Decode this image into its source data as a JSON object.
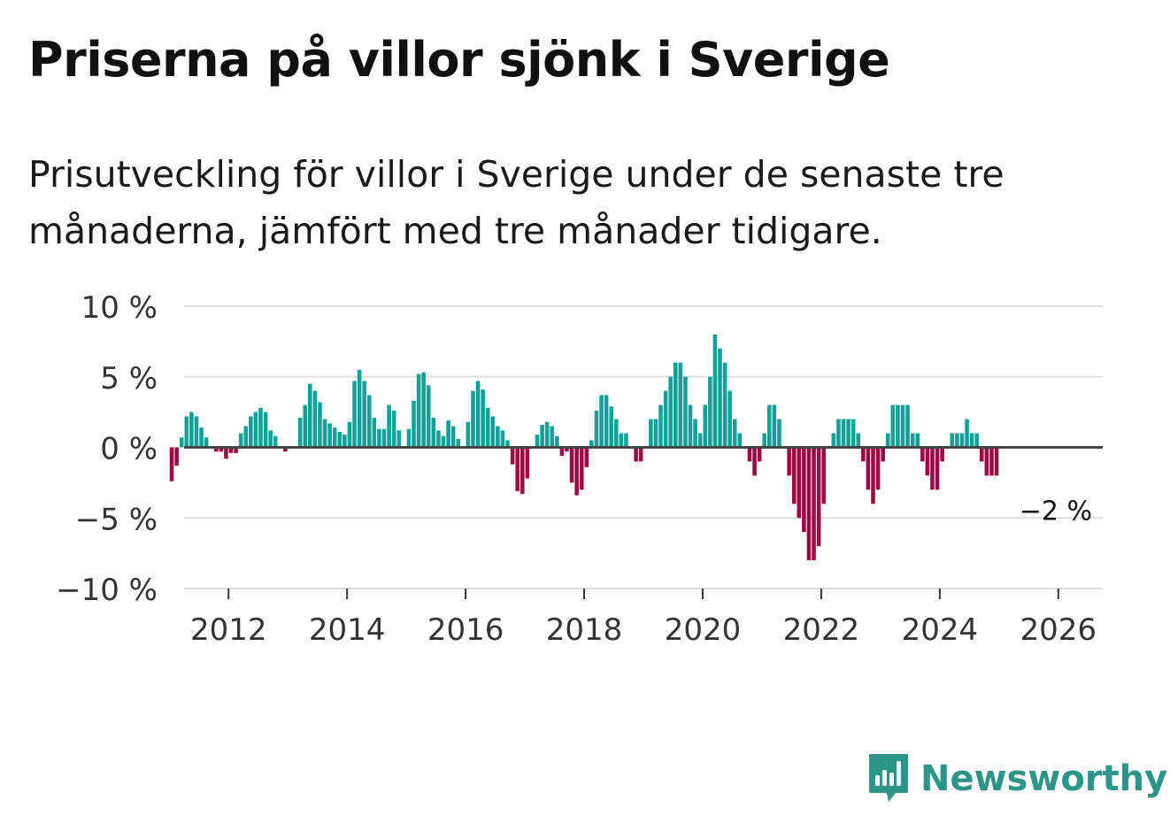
{
  "header": {
    "title": "Priserna på villor sjönk i Sverige",
    "subtitle": "Prisutveckling för villor i Sverige under de senaste tre månaderna, jämfört med tre månader tidigare."
  },
  "brand": {
    "name": "Newsworthy",
    "color": "#2c9488"
  },
  "chart_data": {
    "type": "bar",
    "xlabel": "",
    "ylabel": "",
    "ylim": [
      -10,
      10
    ],
    "yticks": [
      10,
      5,
      0,
      -5,
      -10
    ],
    "ytick_labels": [
      "10 %",
      "5 %",
      "0 %",
      "−5 %",
      "−10 %"
    ],
    "xticks": [
      2012,
      2014,
      2016,
      2018,
      2020,
      2022,
      2024,
      2026
    ],
    "xtick_labels": [
      "2012",
      "2014",
      "2016",
      "2018",
      "2020",
      "2022",
      "2024",
      "2026"
    ],
    "xlim": [
      2011.25,
      2026.75
    ],
    "start": "2011-01",
    "grid": true,
    "colors": {
      "positive": "#12a198",
      "negative": "#9a0b45",
      "zero_line": "#444444",
      "grid": "#dddddd"
    },
    "annotation": {
      "label": "−2 %",
      "value": -2
    },
    "values": [
      -2.4,
      -1.3,
      0.7,
      2.2,
      2.5,
      2.2,
      1.4,
      0.7,
      0,
      -0.3,
      -0.3,
      -0.8,
      -0.4,
      -0.4,
      1,
      1.5,
      2.2,
      2.5,
      2.8,
      2.5,
      1.2,
      0.8,
      0,
      -0.3,
      0,
      0,
      2.1,
      3,
      4.5,
      4,
      3.2,
      2,
      1.7,
      1.4,
      1.1,
      0.9,
      1.8,
      4.7,
      5.5,
      4.7,
      3.7,
      2.1,
      1.3,
      1.3,
      3,
      2.6,
      1.2,
      0,
      1.3,
      3.3,
      5.2,
      5.3,
      4.4,
      2.1,
      1.2,
      0.8,
      1.9,
      1.5,
      0.6,
      0,
      1.8,
      4,
      4.7,
      4.1,
      2.8,
      2.2,
      1.5,
      1.2,
      0.5,
      -1.2,
      -3.1,
      -3.3,
      -2.2,
      0,
      0.9,
      1.6,
      1.8,
      1.5,
      0.8,
      -0.6,
      -0.3,
      -2.5,
      -3.4,
      -3,
      -1.4,
      0.5,
      2.6,
      3.7,
      3.7,
      2.9,
      2,
      1,
      1,
      0,
      -1,
      -1,
      0,
      2,
      2,
      3,
      4,
      5,
      6,
      6,
      5,
      3,
      2,
      1,
      3,
      5,
      8,
      7,
      6,
      4,
      2,
      1,
      0,
      -1,
      -2,
      -1,
      1,
      3,
      3,
      2,
      0,
      -2,
      -4,
      -5,
      -6,
      -8,
      -8,
      -7,
      -4,
      0,
      1,
      2,
      2,
      2,
      2,
      1,
      -1,
      -3,
      -4,
      -3,
      -1,
      1,
      3,
      3,
      3,
      3,
      1,
      1,
      -1,
      -2,
      -3,
      -3,
      -1,
      0,
      1,
      1,
      1,
      2,
      1,
      1,
      -1,
      -2,
      -2,
      -2
    ]
  }
}
